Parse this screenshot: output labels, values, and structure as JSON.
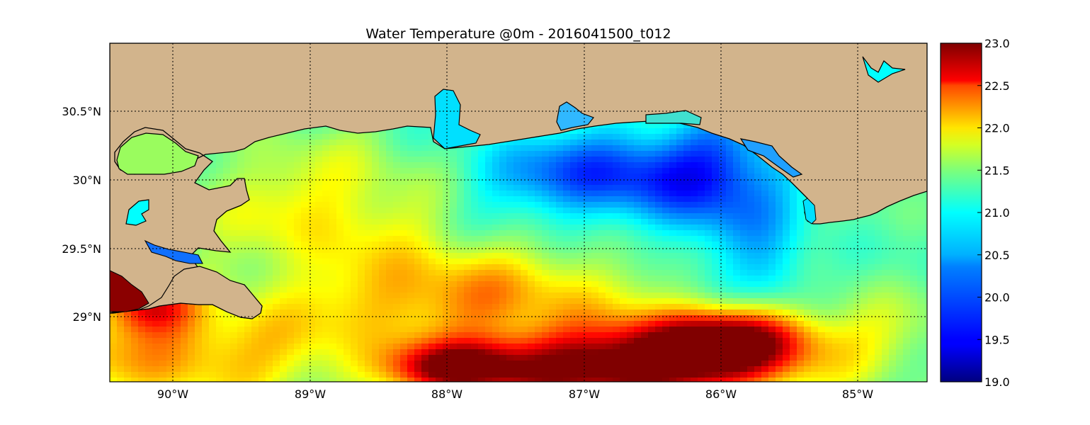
{
  "map": {
    "title": "Water Temperature @0m - 2016041500_t012",
    "extent": {
      "lon": [
        -90.47,
        -84.5
      ],
      "lat": [
        28.53,
        31.0
      ]
    },
    "lon_ticks": [
      {
        "value": -90,
        "label": "90°W"
      },
      {
        "value": -89,
        "label": "89°W"
      },
      {
        "value": -88,
        "label": "88°W"
      },
      {
        "value": -87,
        "label": "87°W"
      },
      {
        "value": -86,
        "label": "86°W"
      },
      {
        "value": -85,
        "label": "85°W"
      }
    ],
    "lat_ticks": [
      {
        "value": 30.5,
        "label": "30.5°N"
      },
      {
        "value": 30.0,
        "label": "30°N"
      },
      {
        "value": 29.5,
        "label": "29.5°N"
      },
      {
        "value": 29.0,
        "label": "29°N"
      }
    ],
    "gridlines": true,
    "land_color": "#d2b48c",
    "coastline_color": "#000000"
  },
  "colorbar": {
    "range": [
      19.0,
      23.0
    ],
    "colormap": "jet",
    "ticks": [
      "19.0",
      "19.5",
      "20.0",
      "20.5",
      "21.0",
      "21.5",
      "22.0",
      "22.5",
      "23.0"
    ]
  }
}
